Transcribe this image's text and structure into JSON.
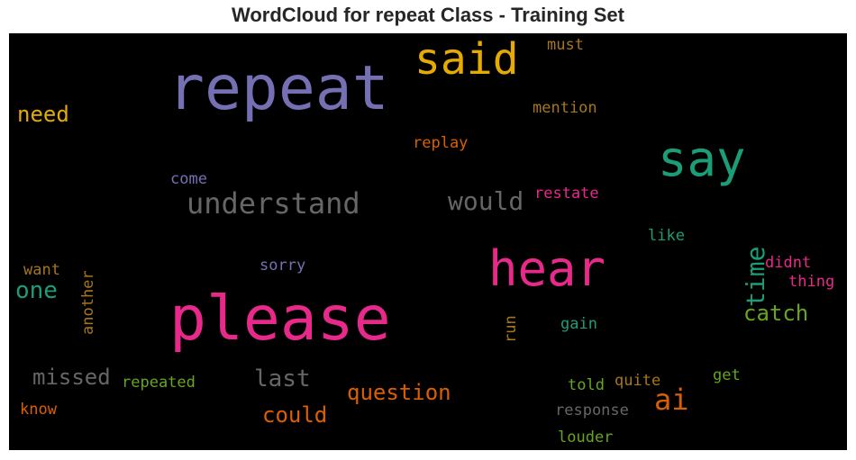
{
  "title": "WordCloud for repeat Class - Training Set",
  "chart_data": {
    "type": "wordcloud",
    "title": "WordCloud for repeat Class - Training Set",
    "background": "#000000",
    "colormap": "Dark2",
    "words": [
      {
        "text": "repeat",
        "color": "#7570b3",
        "orientation": "horizontal"
      },
      {
        "text": "please",
        "color": "#e7298a",
        "orientation": "horizontal"
      },
      {
        "text": "said",
        "color": "#e6ab02",
        "orientation": "horizontal"
      },
      {
        "text": "say",
        "color": "#1b9e77",
        "orientation": "horizontal"
      },
      {
        "text": "hear",
        "color": "#e7298a",
        "orientation": "horizontal"
      },
      {
        "text": "understand",
        "color": "#666666",
        "orientation": "horizontal"
      },
      {
        "text": "would",
        "color": "#666666",
        "orientation": "horizontal"
      },
      {
        "text": "time",
        "color": "#1b9e77",
        "orientation": "vertical"
      },
      {
        "text": "ai",
        "color": "#d95f02",
        "orientation": "horizontal"
      },
      {
        "text": "need",
        "color": "#e6ab02",
        "orientation": "horizontal"
      },
      {
        "text": "one",
        "color": "#1b9e77",
        "orientation": "horizontal"
      },
      {
        "text": "catch",
        "color": "#66a61e",
        "orientation": "horizontal"
      },
      {
        "text": "missed",
        "color": "#666666",
        "orientation": "horizontal"
      },
      {
        "text": "last",
        "color": "#666666",
        "orientation": "horizontal"
      },
      {
        "text": "question",
        "color": "#d95f02",
        "orientation": "horizontal"
      },
      {
        "text": "could",
        "color": "#d95f02",
        "orientation": "horizontal"
      },
      {
        "text": "must",
        "color": "#a6761d",
        "orientation": "horizontal"
      },
      {
        "text": "mention",
        "color": "#a6761d",
        "orientation": "horizontal"
      },
      {
        "text": "replay",
        "color": "#d95f02",
        "orientation": "horizontal"
      },
      {
        "text": "come",
        "color": "#7570b3",
        "orientation": "horizontal"
      },
      {
        "text": "restate",
        "color": "#e7298a",
        "orientation": "horizontal"
      },
      {
        "text": "another",
        "color": "#a6761d",
        "orientation": "vertical"
      },
      {
        "text": "like",
        "color": "#1b9e77",
        "orientation": "horizontal"
      },
      {
        "text": "want",
        "color": "#a6761d",
        "orientation": "horizontal"
      },
      {
        "text": "sorry",
        "color": "#7570b3",
        "orientation": "horizontal"
      },
      {
        "text": "didnt",
        "color": "#e7298a",
        "orientation": "horizontal"
      },
      {
        "text": "thing",
        "color": "#e7298a",
        "orientation": "horizontal"
      },
      {
        "text": "run",
        "color": "#a6761d",
        "orientation": "vertical"
      },
      {
        "text": "gain",
        "color": "#1b9e77",
        "orientation": "horizontal"
      },
      {
        "text": "repeated",
        "color": "#66a61e",
        "orientation": "horizontal"
      },
      {
        "text": "get",
        "color": "#66a61e",
        "orientation": "horizontal"
      },
      {
        "text": "told",
        "color": "#66a61e",
        "orientation": "horizontal"
      },
      {
        "text": "quite",
        "color": "#a6761d",
        "orientation": "horizontal"
      },
      {
        "text": "know",
        "color": "#d95f02",
        "orientation": "horizontal"
      },
      {
        "text": "response",
        "color": "#666666",
        "orientation": "horizontal"
      },
      {
        "text": "louder",
        "color": "#66a61e",
        "orientation": "horizontal"
      }
    ]
  }
}
